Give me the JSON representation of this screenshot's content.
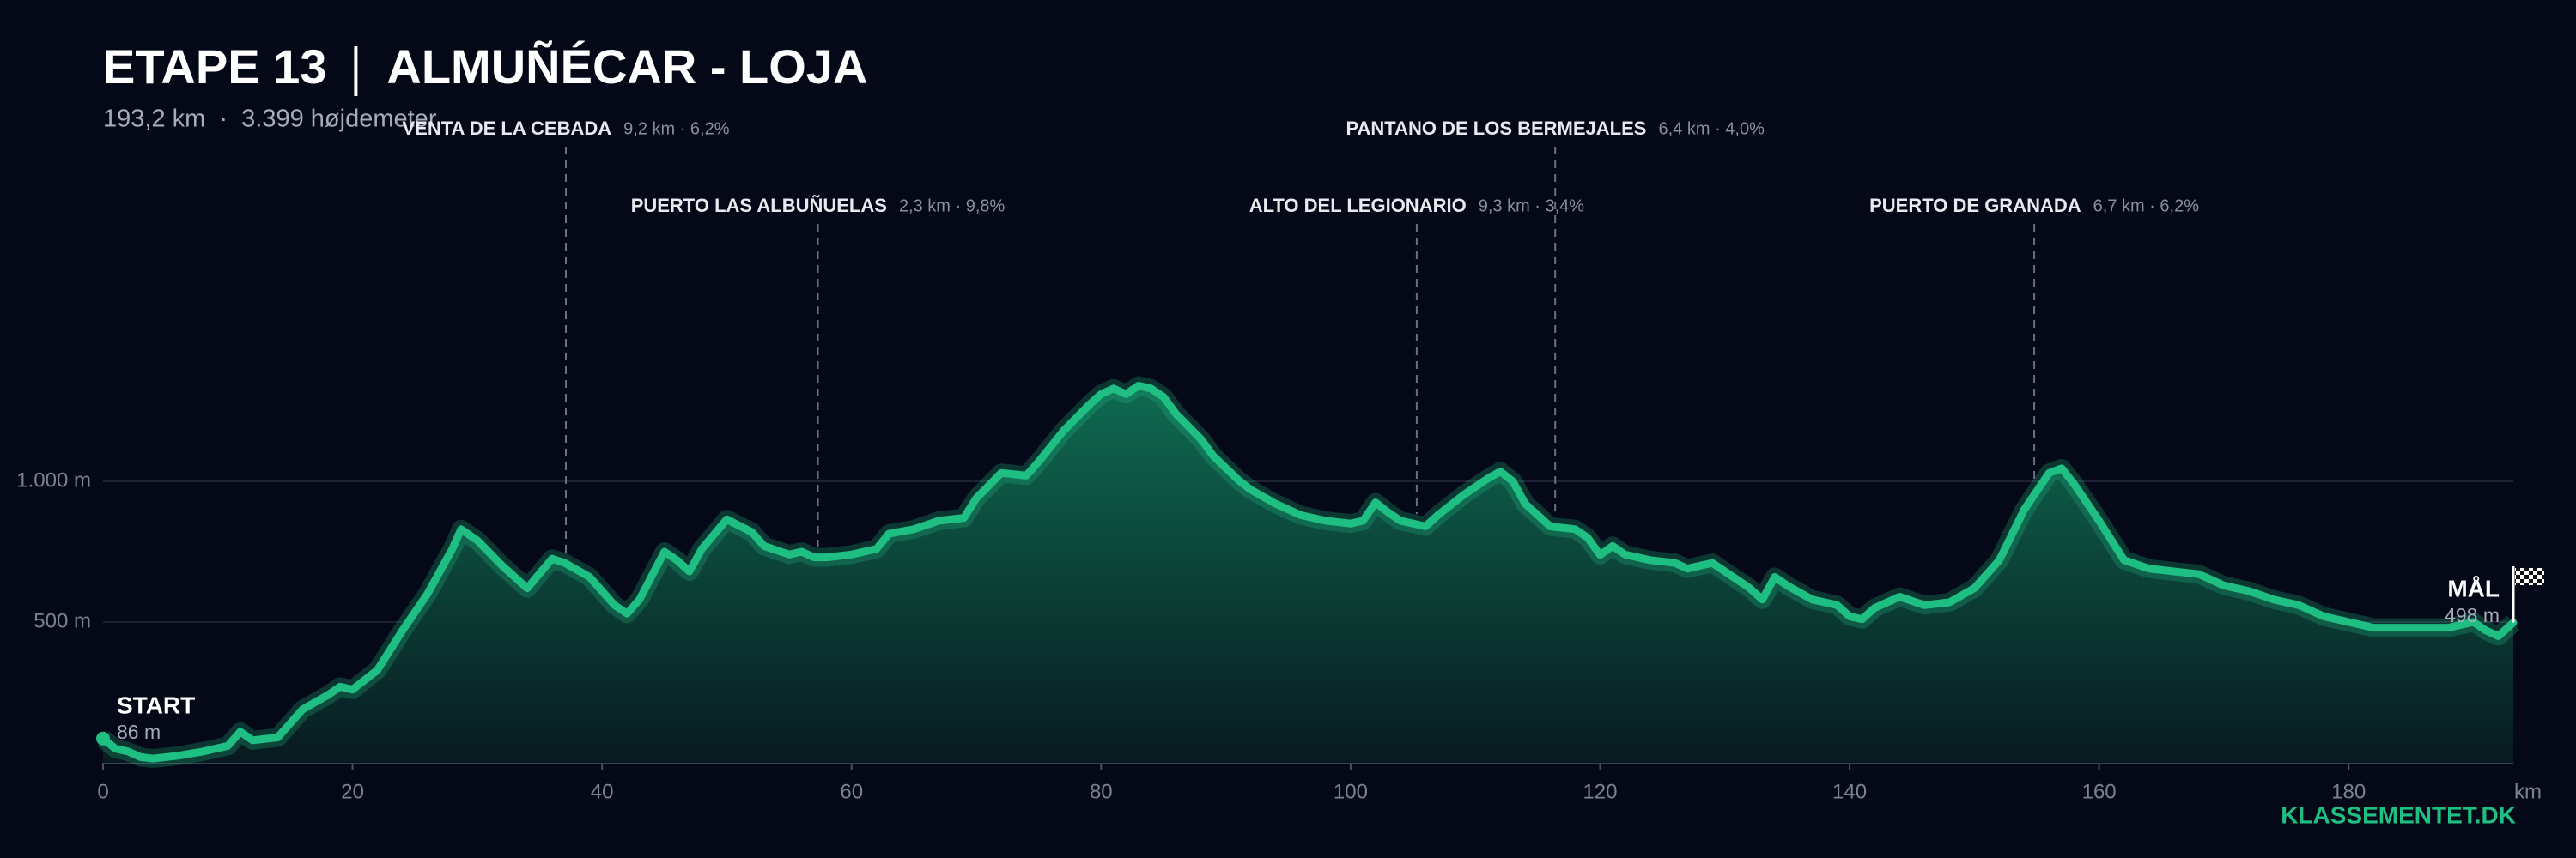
{
  "chart_data": {
    "type": "area",
    "title": "ETAPE 13",
    "route": "ALMUÑÉCAR - LOJA",
    "subtitle": "193,2 km  ·  3.399 højdemeter",
    "brand": "KLASSEMENTET.DK",
    "x_label": "km",
    "xlim": [
      0,
      193.2
    ],
    "xticks": [
      0,
      20,
      40,
      60,
      80,
      100,
      120,
      140,
      160,
      180
    ],
    "ylim": [
      0,
      2000
    ],
    "yticks": [
      {
        "value": 500,
        "label": "500 m"
      },
      {
        "value": 1000,
        "label": "1.000 m"
      }
    ],
    "grid": true,
    "color": "#1fbf84",
    "start": {
      "label": "START",
      "elevation": "86 m"
    },
    "finish": {
      "label": "MÅL",
      "elevation": "498 m"
    },
    "x": [
      0,
      1,
      2,
      3,
      4,
      6,
      8,
      10,
      11,
      12,
      14,
      16,
      18,
      19,
      20,
      22,
      24,
      26,
      28,
      28.7,
      30,
      32,
      34,
      36,
      37,
      39,
      41,
      42,
      43,
      45,
      46,
      47,
      48,
      50,
      52,
      53,
      55,
      56,
      57,
      58,
      60,
      62,
      63,
      65,
      67,
      69,
      70,
      72,
      74,
      75,
      77,
      79,
      80,
      81,
      82,
      83,
      84,
      85,
      86,
      88,
      89,
      91,
      92,
      94,
      96,
      98,
      100,
      101,
      102,
      103,
      104,
      106,
      107,
      109,
      111,
      112,
      113,
      114,
      116,
      118,
      119,
      120,
      121,
      122,
      124,
      126,
      127,
      129,
      130,
      132,
      133,
      134,
      135,
      137,
      138,
      139,
      140,
      141,
      142,
      144,
      146,
      148,
      150,
      152,
      154,
      156,
      157,
      158,
      160,
      162,
      164,
      166,
      168,
      170,
      172,
      174,
      176,
      178,
      180,
      182,
      184,
      186,
      188,
      190,
      191,
      192,
      193.2
    ],
    "values": [
      86,
      50,
      40,
      20,
      15,
      25,
      40,
      60,
      110,
      80,
      90,
      190,
      240,
      270,
      260,
      330,
      470,
      600,
      760,
      830,
      790,
      700,
      620,
      725,
      710,
      660,
      560,
      530,
      580,
      750,
      720,
      680,
      760,
      865,
      820,
      770,
      740,
      750,
      730,
      730,
      740,
      760,
      814,
      830,
      860,
      870,
      940,
      1030,
      1020,
      1070,
      1180,
      1270,
      1310,
      1330,
      1310,
      1340,
      1330,
      1300,
      1240,
      1150,
      1090,
      1005,
      970,
      920,
      880,
      860,
      850,
      860,
      925,
      890,
      860,
      840,
      880,
      950,
      1010,
      1035,
      1000,
      920,
      840,
      830,
      800,
      738,
      770,
      740,
      720,
      710,
      690,
      710,
      680,
      620,
      580,
      660,
      630,
      580,
      570,
      560,
      520,
      510,
      550,
      590,
      560,
      570,
      620,
      720,
      900,
      1030,
      1046,
      990,
      860,
      720,
      690,
      680,
      670,
      630,
      610,
      580,
      560,
      520,
      500,
      480,
      480,
      480,
      480,
      500,
      470,
      450,
      498
    ],
    "climbs": [
      {
        "name": "VENTA DE LA CEBADA",
        "detail": "9,2 km · 6,2%",
        "km": 37.1
      },
      {
        "name": "PUERTO LAS ALBUÑUELAS",
        "detail": "2,3 km · 9,8%",
        "km": 57.3
      },
      {
        "name": "ALTO DEL LEGIONARIO",
        "detail": "9,3 km · 3,4%",
        "km": 105.3
      },
      {
        "name": "PANTANO DE LOS BERMEJALES",
        "detail": "6,4 km · 4,0%",
        "km": 116.4
      },
      {
        "name": "PUERTO DE GRANADA",
        "detail": "6,7 km · 6,2%",
        "km": 154.8
      }
    ]
  }
}
